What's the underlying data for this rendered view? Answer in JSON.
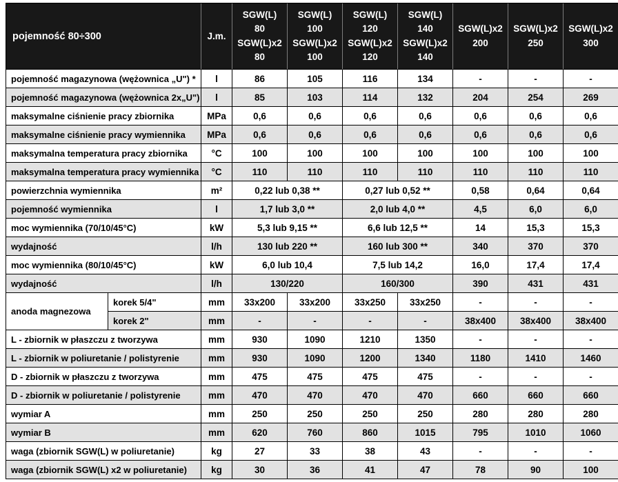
{
  "colors": {
    "header-bg": "#181818",
    "row-alt": "#e2e2e2",
    "border": "#000000"
  },
  "table": {
    "header": {
      "title": "pojemność 80÷300",
      "unit_label": "J.m.",
      "models": [
        "SGW(L)\n80\nSGW(L)x2\n80",
        "SGW(L)\n100\nSGW(L)x2\n100",
        "SGW(L)\n120\nSGW(L)x2\n120",
        "SGW(L)\n140\nSGW(L)x2\n140",
        "SGW(L)x2\n200",
        "SGW(L)x2\n250",
        "SGW(L)x2\n300"
      ]
    },
    "rows": [
      {
        "label": "pojemność magazynowa (wężownica „U\") *",
        "unit": "l",
        "cells": [
          "86",
          "105",
          "116",
          "134",
          "-",
          "-",
          "-"
        ]
      },
      {
        "label": "pojemność magazynowa (wężownica 2x„U\") *",
        "unit": "l",
        "cells": [
          "85",
          "103",
          "114",
          "132",
          "204",
          "254",
          "269"
        ]
      },
      {
        "label": "maksymalne ciśnienie pracy zbiornika",
        "unit": "MPa",
        "cells": [
          "0,6",
          "0,6",
          "0,6",
          "0,6",
          "0,6",
          "0,6",
          "0,6"
        ]
      },
      {
        "label": "maksymalne ciśnienie pracy wymiennika",
        "unit": "MPa",
        "cells": [
          "0,6",
          "0,6",
          "0,6",
          "0,6",
          "0,6",
          "0,6",
          "0,6"
        ]
      },
      {
        "label": "maksymalna temperatura pracy zbiornika",
        "unit": "°C",
        "cells": [
          "100",
          "100",
          "100",
          "100",
          "100",
          "100",
          "100"
        ]
      },
      {
        "label": "maksymalna temperatura pracy wymiennika",
        "unit": "°C",
        "cells": [
          "110",
          "110",
          "110",
          "110",
          "110",
          "110",
          "110"
        ]
      },
      {
        "label": "powierzchnia wymiennika",
        "unit": "m²",
        "cells": [
          {
            "text": "0,22 lub 0,38 **",
            "span": 2
          },
          {
            "text": "0,27 lub 0,52 **",
            "span": 2
          },
          "0,58",
          "0,64",
          "0,64"
        ]
      },
      {
        "label": "pojemność wymiennika",
        "unit": "l",
        "cells": [
          {
            "text": "1,7 lub 3,0 **",
            "span": 2
          },
          {
            "text": "2,0 lub 4,0 **",
            "span": 2
          },
          "4,5",
          "6,0",
          "6,0"
        ]
      },
      {
        "label": "moc wymiennika (70/10/45°C)",
        "unit": "kW",
        "cells": [
          {
            "text": "5,3 lub 9,15 **",
            "span": 2
          },
          {
            "text": "6,6 lub 12,5 **",
            "span": 2
          },
          "14",
          "15,3",
          "15,3"
        ]
      },
      {
        "label": "wydajność",
        "unit": "l/h",
        "cells": [
          {
            "text": "130 lub 220 **",
            "span": 2
          },
          {
            "text": "160 lub 300 **",
            "span": 2
          },
          "340",
          "370",
          "370"
        ]
      },
      {
        "label": "moc wymiennika (80/10/45°C)",
        "unit": "kW",
        "cells": [
          {
            "text": "6,0 lub 10,4",
            "span": 2
          },
          {
            "text": "7,5 lub 14,2",
            "span": 2
          },
          "16,0",
          "17,4",
          "17,4"
        ]
      },
      {
        "label": "wydajność",
        "unit": "l/h",
        "cells": [
          {
            "text": "130/220",
            "span": 2
          },
          {
            "text": "160/300",
            "span": 2
          },
          "390",
          "431",
          "431"
        ]
      },
      {
        "group": "anoda magnezowa",
        "sublabel": "korek 5/4\"",
        "unit": "mm",
        "cells": [
          "33x200",
          "33x200",
          "33x250",
          "33x250",
          "-",
          "-",
          "-"
        ]
      },
      {
        "sublabel": "korek 2\"",
        "unit": "mm",
        "cells": [
          "-",
          "-",
          "-",
          "-",
          "38x400",
          "38x400",
          "38x400"
        ]
      },
      {
        "label": "L - zbiornik w płaszczu z tworzywa",
        "unit": "mm",
        "cells": [
          "930",
          "1090",
          "1210",
          "1350",
          "-",
          "-",
          "-"
        ]
      },
      {
        "label": "L - zbiornik w poliuretanie / polistyrenie",
        "unit": "mm",
        "cells": [
          "930",
          "1090",
          "1200",
          "1340",
          "1180",
          "1410",
          "1460"
        ]
      },
      {
        "label": "D - zbiornik w płaszczu z tworzywa",
        "unit": "mm",
        "cells": [
          "475",
          "475",
          "475",
          "475",
          "-",
          "-",
          "-"
        ]
      },
      {
        "label": "D - zbiornik w poliuretanie / polistyrenie",
        "unit": "mm",
        "cells": [
          "470",
          "470",
          "470",
          "470",
          "660",
          "660",
          "660"
        ]
      },
      {
        "label": "wymiar A",
        "unit": "mm",
        "cells": [
          "250",
          "250",
          "250",
          "250",
          "280",
          "280",
          "280"
        ]
      },
      {
        "label": "wymiar B",
        "unit": "mm",
        "cells": [
          "620",
          "760",
          "860",
          "1015",
          "795",
          "1010",
          "1060"
        ]
      },
      {
        "label": "waga (zbiornik SGW(L) w poliuretanie)",
        "unit": "kg",
        "cells": [
          "27",
          "33",
          "38",
          "43",
          "-",
          "-",
          "-"
        ]
      },
      {
        "label": "waga (zbiornik SGW(L) x2 w poliuretanie)",
        "unit": "kg",
        "cells": [
          "30",
          "36",
          "41",
          "47",
          "78",
          "90",
          "100"
        ]
      }
    ]
  }
}
